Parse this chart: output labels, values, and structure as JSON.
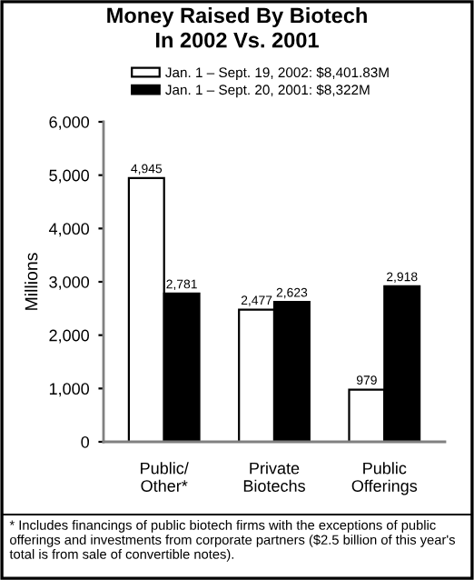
{
  "chart_data": {
    "type": "bar",
    "title": "Money Raised By Biotech\nIn 2002 Vs. 2001",
    "ylabel": "Millions",
    "categories": [
      "Public/\nOther*",
      "Private\nBiotechs",
      "Public\nOfferings"
    ],
    "series": [
      {
        "name": "Jan. 1 – Sept. 19, 2002: $8,401.83M",
        "color": "#ffffff",
        "values": [
          4945,
          2477,
          979
        ],
        "value_labels": [
          "4,945",
          "2,477",
          "979"
        ]
      },
      {
        "name": "Jan. 1 – Sept. 20, 2001: $8,322M",
        "color": "#000000",
        "values": [
          2781,
          2623,
          2918
        ],
        "value_labels": [
          "2,781",
          "2,623",
          "2,918"
        ]
      }
    ],
    "ylim": [
      0,
      6000
    ],
    "yticks": [
      {
        "value": 0,
        "label": "0"
      },
      {
        "value": 1000,
        "label": "1,000"
      },
      {
        "value": 2000,
        "label": "2,000"
      },
      {
        "value": 3000,
        "label": "3,000"
      },
      {
        "value": 4000,
        "label": "4,000"
      },
      {
        "value": 5000,
        "label": "5,000"
      },
      {
        "value": 6000,
        "label": "6,000"
      }
    ],
    "grid": false,
    "legend": "top",
    "annotations": [
      "* Includes financings of public biotech firms with the exceptions of public offerings and investments from corporate partners ($2.5 billion of this year's total is from sale of convertible notes)."
    ]
  }
}
